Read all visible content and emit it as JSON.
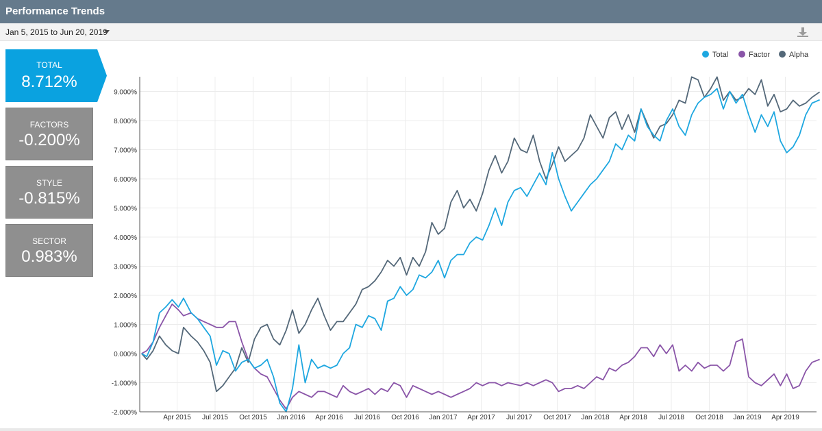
{
  "header": {
    "title": "Performance Trends"
  },
  "toolbar": {
    "date_range": "Jan 5, 2015 to Jun 20, 2019"
  },
  "panels": [
    {
      "label": "TOTAL",
      "value": "8.712%",
      "color": "#0aa2e0"
    },
    {
      "label": "FACTORS",
      "value": "-0.200%",
      "color": "#8f8f8f"
    },
    {
      "label": "STYLE",
      "value": "-0.815%",
      "color": "#8f8f8f"
    },
    {
      "label": "SECTOR",
      "value": "0.983%",
      "color": "#8f8f8f"
    }
  ],
  "icons": {
    "download": "download-icon",
    "caret": "chevron-down-icon"
  },
  "chart_data": {
    "type": "line",
    "title": "",
    "xlabel": "",
    "ylabel": "",
    "ylim": [
      -2,
      9.5
    ],
    "grid": true,
    "legend_position": "top-right",
    "x_ticks": [
      "Apr 2015",
      "Jul 2015",
      "Oct 2015",
      "Jan 2016",
      "Apr 2016",
      "Jul 2016",
      "Oct 2016",
      "Jan 2017",
      "Apr 2017",
      "Jul 2017",
      "Oct 2017",
      "Jan 2018",
      "Apr 2018",
      "Jul 2018",
      "Oct 2018",
      "Jan 2019",
      "Apr 2019"
    ],
    "y_ticks": [
      "-2.000%",
      "-1.000%",
      "0.000%",
      "1.000%",
      "2.000%",
      "3.000%",
      "4.000%",
      "5.000%",
      "6.000%",
      "7.000%",
      "8.000%",
      "9.000%"
    ],
    "x_month_index_note": "x = months since Jan 2015",
    "series": [
      {
        "name": "Total",
        "color": "#1ea7e0",
        "x": [
          0.1,
          0.5,
          1.0,
          1.5,
          2.0,
          2.5,
          3.0,
          3.4,
          4.0,
          4.5,
          5.0,
          5.5,
          6.0,
          6.5,
          7.0,
          7.5,
          8.0,
          8.5,
          9.0,
          9.5,
          10.0,
          10.5,
          11.0,
          11.5,
          12.0,
          12.5,
          13.0,
          13.5,
          14.0,
          14.5,
          15.0,
          15.5,
          16.0,
          16.5,
          17.0,
          17.5,
          18.0,
          18.5,
          19.0,
          19.5,
          20.0,
          20.5,
          21.0,
          21.5,
          22.0,
          22.5,
          23.0,
          23.5,
          24.0,
          24.5,
          25.0,
          25.5,
          26.0,
          26.5,
          27.0,
          27.5,
          28.0,
          28.5,
          29.0,
          29.5,
          30.0,
          30.5,
          31.0,
          31.5,
          32.0,
          32.5,
          33.0,
          33.5,
          34.0,
          34.5,
          35.0,
          35.5,
          36.0,
          36.5,
          37.0,
          37.5,
          38.0,
          38.5,
          39.0,
          39.5,
          40.0,
          40.5,
          41.0,
          41.5,
          42.0,
          42.5,
          43.0,
          43.5,
          44.0,
          44.5,
          45.0,
          45.5,
          46.0,
          46.5,
          47.0,
          47.5,
          48.0,
          48.5,
          49.0,
          49.5,
          50.0,
          50.5,
          51.0,
          51.5,
          52.0,
          52.5,
          53.0,
          53.6
        ],
        "y": [
          0.0,
          -0.1,
          0.4,
          1.4,
          1.6,
          1.85,
          1.6,
          1.9,
          1.4,
          1.2,
          0.9,
          0.6,
          -0.4,
          0.1,
          0.0,
          -0.6,
          -0.3,
          -0.2,
          -0.5,
          -0.4,
          -0.2,
          -0.8,
          -1.7,
          -2.0,
          -1.2,
          0.3,
          -1.0,
          -0.2,
          -0.5,
          -0.4,
          -0.5,
          -0.4,
          0.0,
          0.2,
          1.0,
          0.9,
          1.3,
          1.2,
          0.8,
          1.8,
          1.9,
          2.3,
          2.0,
          2.2,
          2.7,
          2.6,
          2.8,
          3.2,
          2.6,
          3.2,
          3.4,
          3.4,
          3.8,
          4.0,
          3.9,
          4.4,
          5.0,
          4.4,
          5.2,
          5.6,
          5.7,
          5.4,
          5.8,
          6.2,
          5.8,
          6.9,
          6.0,
          5.4,
          4.9,
          5.2,
          5.5,
          5.8,
          6.0,
          6.3,
          6.6,
          7.2,
          7.0,
          7.5,
          7.3,
          8.4,
          7.8,
          7.5,
          7.3,
          8.0,
          8.4,
          7.8,
          7.5,
          8.2,
          8.6,
          8.8,
          8.9,
          9.1,
          8.4,
          9.0,
          8.6,
          8.9,
          8.2,
          7.6,
          8.2,
          7.8,
          8.3,
          7.3,
          6.9,
          7.1,
          7.5,
          8.2,
          8.6,
          8.712
        ]
      },
      {
        "name": "Factor",
        "color": "#8a55a8",
        "x": [
          0.1,
          0.5,
          1.0,
          1.5,
          2.0,
          2.5,
          3.0,
          3.4,
          4.0,
          4.5,
          5.0,
          5.5,
          6.0,
          6.5,
          7.0,
          7.5,
          8.0,
          8.5,
          9.0,
          9.5,
          10.0,
          10.5,
          11.0,
          11.5,
          12.0,
          12.5,
          13.0,
          13.5,
          14.0,
          14.5,
          15.0,
          15.5,
          16.0,
          16.5,
          17.0,
          17.5,
          18.0,
          18.5,
          19.0,
          19.5,
          20.0,
          20.5,
          21.0,
          21.5,
          22.0,
          22.5,
          23.0,
          23.5,
          24.0,
          24.5,
          25.0,
          25.5,
          26.0,
          26.5,
          27.0,
          27.5,
          28.0,
          28.5,
          29.0,
          29.5,
          30.0,
          30.5,
          31.0,
          31.5,
          32.0,
          32.5,
          33.0,
          33.5,
          34.0,
          34.5,
          35.0,
          35.5,
          36.0,
          36.5,
          37.0,
          37.5,
          38.0,
          38.5,
          39.0,
          39.5,
          40.0,
          40.5,
          41.0,
          41.5,
          42.0,
          42.5,
          43.0,
          43.5,
          44.0,
          44.5,
          45.0,
          45.5,
          46.0,
          46.5,
          47.0,
          47.5,
          48.0,
          48.5,
          49.0,
          49.5,
          50.0,
          50.5,
          51.0,
          51.5,
          52.0,
          52.5,
          53.0,
          53.6
        ],
        "y": [
          0.0,
          0.1,
          0.4,
          0.9,
          1.3,
          1.7,
          1.5,
          1.3,
          1.4,
          1.2,
          1.1,
          1.0,
          0.9,
          0.9,
          1.1,
          1.1,
          0.4,
          -0.2,
          -0.5,
          -0.7,
          -0.8,
          -1.2,
          -1.6,
          -1.9,
          -1.5,
          -1.3,
          -1.4,
          -1.5,
          -1.3,
          -1.3,
          -1.4,
          -1.5,
          -1.1,
          -1.3,
          -1.4,
          -1.3,
          -1.2,
          -1.4,
          -1.2,
          -1.3,
          -1.0,
          -1.1,
          -1.5,
          -1.1,
          -1.2,
          -1.3,
          -1.4,
          -1.3,
          -1.4,
          -1.5,
          -1.4,
          -1.3,
          -1.2,
          -1.0,
          -1.1,
          -1.0,
          -1.0,
          -1.1,
          -1.0,
          -1.05,
          -1.1,
          -1.0,
          -1.1,
          -1.0,
          -0.9,
          -1.0,
          -1.3,
          -1.2,
          -1.2,
          -1.1,
          -1.2,
          -1.0,
          -0.8,
          -0.9,
          -0.5,
          -0.6,
          -0.4,
          -0.3,
          -0.1,
          0.2,
          0.2,
          -0.1,
          0.3,
          0.0,
          0.3,
          -0.6,
          -0.4,
          -0.6,
          -0.3,
          -0.5,
          -0.4,
          -0.4,
          -0.6,
          -0.4,
          0.4,
          0.5,
          -0.8,
          -1.0,
          -1.1,
          -0.9,
          -0.7,
          -1.1,
          -0.7,
          -1.2,
          -1.1,
          -0.6,
          -0.3,
          -0.2
        ]
      },
      {
        "name": "Alpha",
        "color": "#546879",
        "x": [
          0.1,
          0.5,
          1.0,
          1.5,
          2.0,
          2.5,
          3.0,
          3.4,
          4.0,
          4.5,
          5.0,
          5.5,
          6.0,
          6.5,
          7.0,
          7.5,
          8.0,
          8.5,
          9.0,
          9.5,
          10.0,
          10.5,
          11.0,
          11.5,
          12.0,
          12.5,
          13.0,
          13.5,
          14.0,
          14.5,
          15.0,
          15.5,
          16.0,
          16.5,
          17.0,
          17.5,
          18.0,
          18.5,
          19.0,
          19.5,
          20.0,
          20.5,
          21.0,
          21.5,
          22.0,
          22.5,
          23.0,
          23.5,
          24.0,
          24.5,
          25.0,
          25.5,
          26.0,
          26.5,
          27.0,
          27.5,
          28.0,
          28.5,
          29.0,
          29.5,
          30.0,
          30.5,
          31.0,
          31.5,
          32.0,
          32.5,
          33.0,
          33.5,
          34.0,
          34.5,
          35.0,
          35.5,
          36.0,
          36.5,
          37.0,
          37.5,
          38.0,
          38.5,
          39.0,
          39.5,
          40.0,
          40.5,
          41.0,
          41.5,
          42.0,
          42.5,
          43.0,
          43.5,
          44.0,
          44.5,
          45.0,
          45.5,
          46.0,
          46.5,
          47.0,
          47.5,
          48.0,
          48.5,
          49.0,
          49.5,
          50.0,
          50.5,
          51.0,
          51.5,
          52.0,
          52.5,
          53.0,
          53.6
        ],
        "y": [
          0.0,
          -0.2,
          0.1,
          0.6,
          0.3,
          0.1,
          0.0,
          0.9,
          0.6,
          0.4,
          0.1,
          -0.3,
          -1.3,
          -1.1,
          -0.8,
          -0.5,
          0.2,
          -0.3,
          0.5,
          0.9,
          1.0,
          0.5,
          0.3,
          0.8,
          1.5,
          0.7,
          1.0,
          1.5,
          1.9,
          1.3,
          0.8,
          1.1,
          1.1,
          1.4,
          1.7,
          2.2,
          2.3,
          2.5,
          2.8,
          3.2,
          3.0,
          3.3,
          2.7,
          3.3,
          3.0,
          3.5,
          4.5,
          4.1,
          4.3,
          5.2,
          5.6,
          5.0,
          5.3,
          4.9,
          5.5,
          6.3,
          6.8,
          6.2,
          6.6,
          7.4,
          7.0,
          6.9,
          7.5,
          6.6,
          6.0,
          6.5,
          7.1,
          6.6,
          6.8,
          7.0,
          7.4,
          8.2,
          7.8,
          7.4,
          8.1,
          8.3,
          7.7,
          8.2,
          7.6,
          8.4,
          7.9,
          7.4,
          7.8,
          7.9,
          8.2,
          8.7,
          8.6,
          9.5,
          9.4,
          8.8,
          9.1,
          9.5,
          8.7,
          9.0,
          8.7,
          8.8,
          9.1,
          8.9,
          9.4,
          8.5,
          8.9,
          8.3,
          8.4,
          8.7,
          8.5,
          8.6,
          8.8,
          8.983
        ]
      }
    ]
  }
}
